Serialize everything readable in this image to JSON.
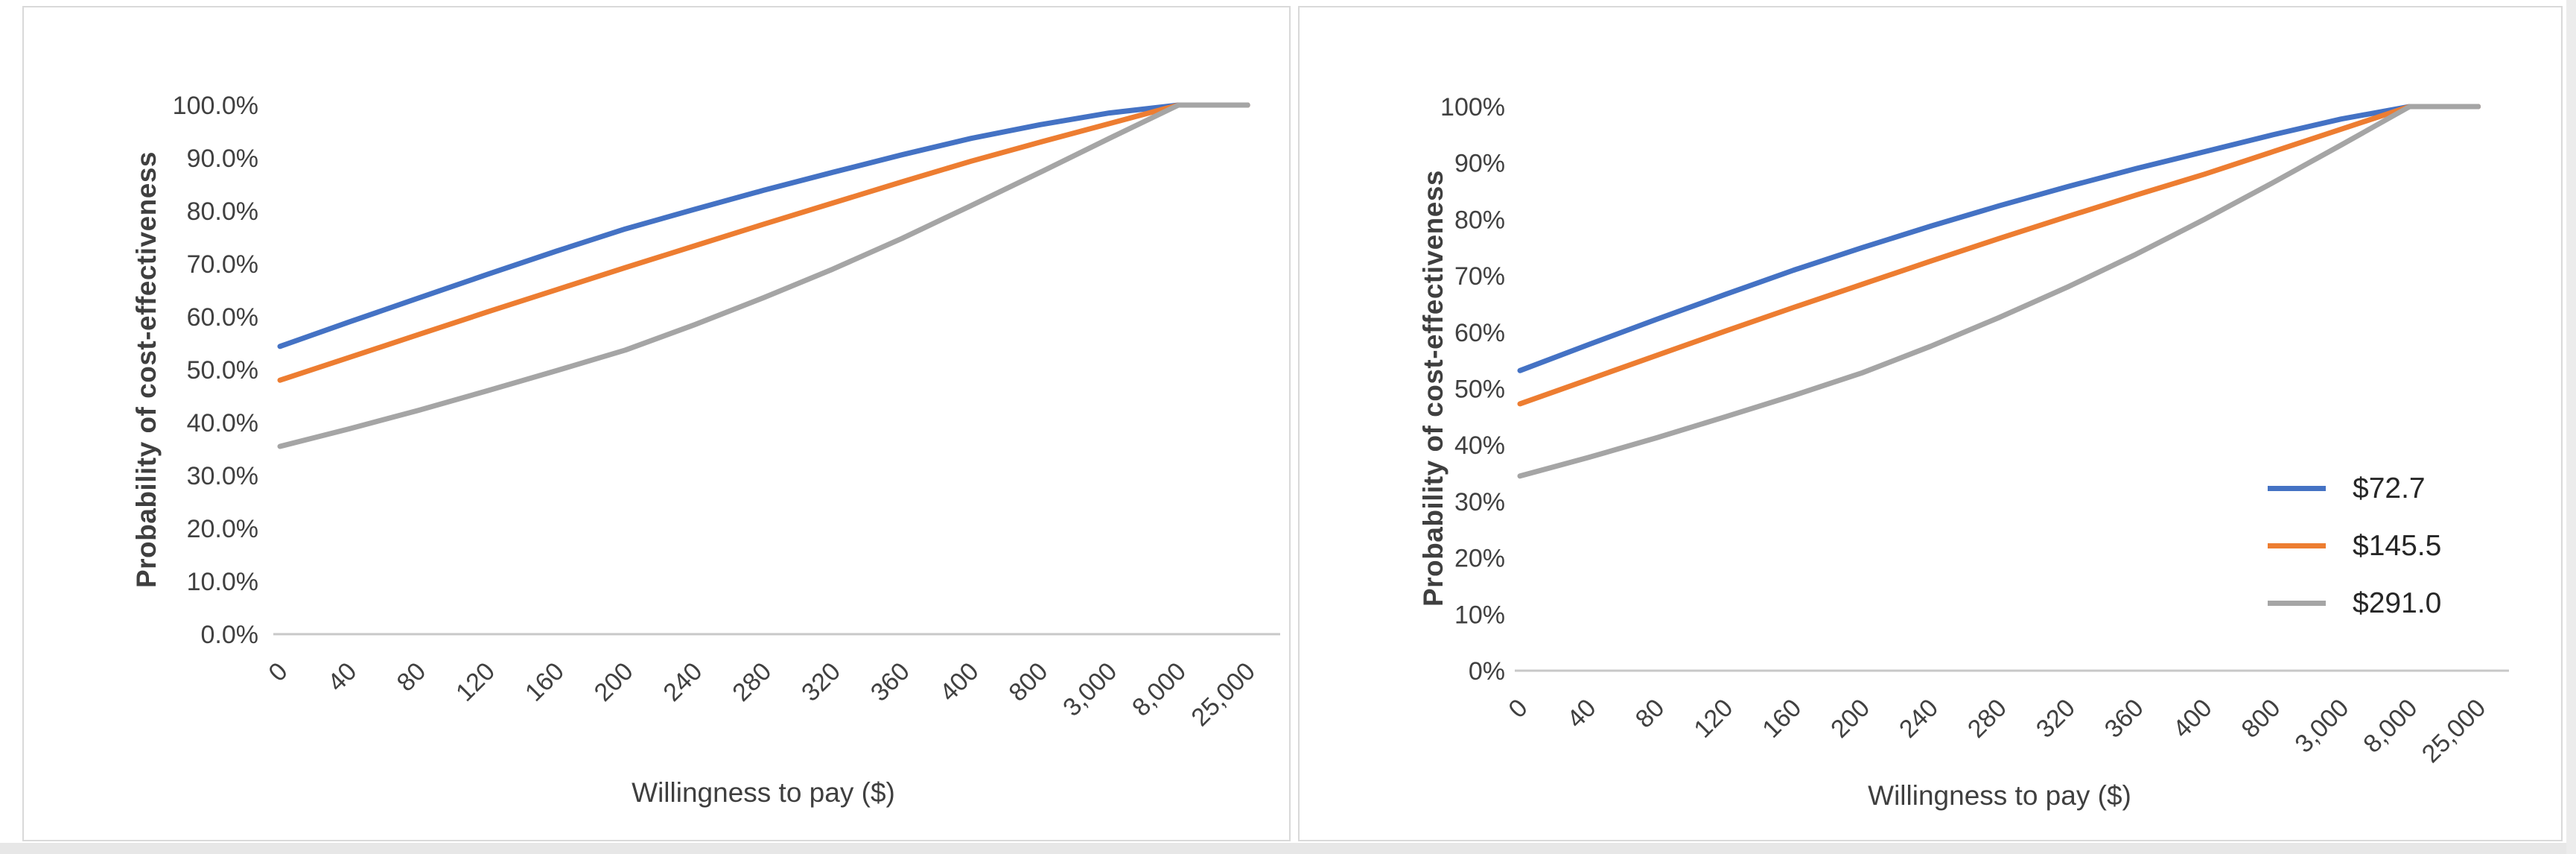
{
  "page": {
    "background": "#ffffff",
    "panel_border_color": "#d9d9d9",
    "axis_line_color": "#c8c8c8",
    "tick_text_color": "#404040",
    "title_text_color": "#3f3f3f"
  },
  "chart_data": [
    {
      "type": "line",
      "title": "",
      "xlabel": "Willingness to pay ($)",
      "ylabel": "Probability of cost-effectiveness",
      "categories": [
        "0",
        "40",
        "80",
        "120",
        "160",
        "200",
        "240",
        "280",
        "320",
        "360",
        "400",
        "800",
        "3,000",
        "8,000",
        "25,000"
      ],
      "y_tick_labels": [
        "0.0%",
        "10.0%",
        "20.0%",
        "30.0%",
        "40.0%",
        "50.0%",
        "60.0%",
        "70.0%",
        "80.0%",
        "90.0%",
        "100.0%"
      ],
      "ylim": [
        0,
        100
      ],
      "grid": false,
      "legend": {
        "visible": false,
        "position": "none"
      },
      "series": [
        {
          "name": "$72.7",
          "color": "#4472C4",
          "values": [
            54.4,
            59.0,
            63.5,
            68.0,
            72.4,
            76.6,
            80.3,
            83.9,
            87.3,
            90.6,
            93.7,
            96.3,
            98.5,
            100,
            100
          ]
        },
        {
          "name": "$145.5",
          "color": "#ED7D31",
          "values": [
            48.0,
            52.3,
            56.6,
            60.9,
            65.1,
            69.3,
            73.4,
            77.5,
            81.5,
            85.5,
            89.4,
            93.0,
            96.5,
            100,
            100
          ]
        },
        {
          "name": "$291.0",
          "color": "#A5A5A5",
          "values": [
            35.5,
            38.8,
            42.3,
            46.0,
            49.8,
            53.7,
            58.5,
            63.6,
            69.0,
            74.8,
            81.0,
            87.3,
            93.7,
            100,
            100
          ]
        }
      ]
    },
    {
      "type": "line",
      "title": "",
      "xlabel": "Willingness to pay ($)",
      "ylabel": "Probability of cost-effectiveness",
      "categories": [
        "0",
        "40",
        "80",
        "120",
        "160",
        "200",
        "240",
        "280",
        "320",
        "360",
        "400",
        "800",
        "3,000",
        "8,000",
        "25,000"
      ],
      "y_tick_labels": [
        "0%",
        "10%",
        "20%",
        "30%",
        "40%",
        "50%",
        "60%",
        "70%",
        "80%",
        "90%",
        "100%"
      ],
      "ylim": [
        0,
        100
      ],
      "grid": false,
      "legend": {
        "visible": true,
        "position": "right-middle",
        "entries": [
          "$72.7",
          "$145.5",
          "$291.0"
        ]
      },
      "series": [
        {
          "name": "$72.7",
          "color": "#4472C4",
          "values": [
            53.2,
            57.8,
            62.3,
            66.7,
            71.0,
            75.0,
            78.8,
            82.4,
            85.8,
            89.0,
            92.0,
            95.0,
            97.8,
            100,
            100
          ]
        },
        {
          "name": "$145.5",
          "color": "#ED7D31",
          "values": [
            47.3,
            51.6,
            55.9,
            60.2,
            64.4,
            68.5,
            72.6,
            76.6,
            80.5,
            84.3,
            88.0,
            92.0,
            96.0,
            100,
            100
          ]
        },
        {
          "name": "$291.0",
          "color": "#A5A5A5",
          "values": [
            34.5,
            37.8,
            41.3,
            45.0,
            48.8,
            52.8,
            57.5,
            62.6,
            68.0,
            73.8,
            80.0,
            86.5,
            93.2,
            100,
            100
          ]
        }
      ]
    }
  ]
}
